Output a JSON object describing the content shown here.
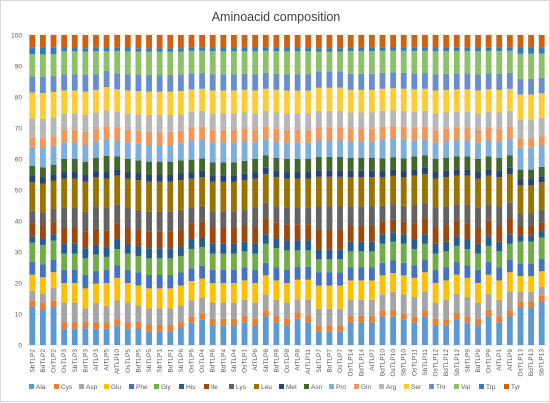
{
  "chart_data": {
    "type": "bar",
    "stacked": "percent",
    "title": "Aminoacid composition",
    "xlabel": "",
    "ylabel": "",
    "ylim": [
      0,
      100
    ],
    "yticks": [
      0,
      10,
      20,
      30,
      40,
      50,
      60,
      70,
      80,
      90,
      100
    ],
    "grid": "horizontal",
    "legend_position": "bottom",
    "categories": [
      "SbTLP2",
      "BdTLP2",
      "OsTLP2",
      "OsTLP3",
      "SbTLP3",
      "BdTLP3",
      "AtTLP3",
      "AtTLP5",
      "AtTLP10",
      "OsTLP5",
      "BdTLP5",
      "SbTLP5",
      "SbTLP1",
      "BdTLP1",
      "SbTLP6",
      "OsTLP6",
      "OsTLP4",
      "BdTLP6",
      "BdTLP4",
      "SbTLP4",
      "OsTLP1",
      "AtTLP6",
      "SbTLP8",
      "BdTLP8",
      "OsTLP8",
      "AtTLP8",
      "AtTLP11",
      "SbTLP7",
      "BdTLP7",
      "OsTLP7",
      "OsTLP14",
      "BdTLP14",
      "AtTLP7",
      "BdTLP10",
      "OsTLP10",
      "SbTLP10",
      "OsTLP11",
      "SbTLP11",
      "OsTLP12",
      "BdTLP12",
      "SbTLP12",
      "SbTLP9",
      "BdTLP9",
      "OsTLP9",
      "AtTLP1",
      "AtTLP9",
      "OsTLP13",
      "BdTLP13",
      "SbTLP13"
    ],
    "series": [
      {
        "name": "Ala",
        "color": "#5b9bd5",
        "values": [
          12,
          11,
          12,
          5,
          5,
          5,
          5,
          5,
          6,
          5,
          5,
          4,
          4,
          4,
          5,
          7,
          8,
          6,
          6,
          6,
          7,
          6,
          9,
          7,
          6,
          8,
          7,
          4,
          4,
          4,
          7,
          7,
          7,
          9,
          9,
          8,
          7,
          9,
          6,
          6,
          8,
          7,
          6,
          9,
          7,
          9,
          12,
          12,
          14
        ]
      },
      {
        "name": "Cys",
        "color": "#ed7d31",
        "values": [
          2,
          2,
          2,
          2,
          2,
          2,
          2,
          2,
          2,
          2,
          2,
          2,
          2,
          2,
          2,
          2,
          2,
          2,
          2,
          2,
          2,
          2,
          2,
          2,
          2,
          2,
          2,
          2,
          2,
          2,
          2,
          2,
          2,
          2,
          2,
          2,
          2,
          2,
          2,
          2,
          2,
          2,
          2,
          2,
          2,
          2,
          2,
          2,
          2
        ]
      },
      {
        "name": "Asp",
        "color": "#a5a5a5",
        "values": [
          3,
          3,
          4,
          6,
          6,
          4,
          6,
          5,
          6,
          6,
          5,
          5,
          5,
          5,
          5,
          5,
          5,
          5,
          5,
          5,
          5,
          5,
          5,
          5,
          5,
          4,
          5,
          5,
          5,
          5,
          5,
          5,
          5,
          5,
          6,
          6,
          6,
          6,
          5,
          6,
          6,
          6,
          5,
          5,
          5,
          6,
          3,
          3,
          3
        ]
      },
      {
        "name": "Glu",
        "color": "#ffc000",
        "values": [
          5,
          5,
          5,
          6,
          6,
          6,
          6,
          7,
          7,
          6,
          6,
          6,
          6,
          6,
          6,
          6,
          6,
          6,
          6,
          6,
          6,
          6,
          6,
          6,
          6,
          6,
          6,
          7,
          7,
          7,
          6,
          6,
          6,
          6,
          6,
          6,
          6,
          6,
          6,
          6,
          6,
          6,
          6,
          6,
          6,
          6,
          5,
          5,
          5
        ]
      },
      {
        "name": "Phe",
        "color": "#4472c4",
        "values": [
          4,
          4,
          4,
          4,
          4,
          4,
          4,
          4,
          4,
          4,
          4,
          4,
          4,
          4,
          4,
          4,
          4,
          4,
          4,
          4,
          4,
          4,
          4,
          4,
          4,
          4,
          4,
          4,
          4,
          4,
          4,
          4,
          4,
          4,
          4,
          4,
          4,
          4,
          4,
          4,
          4,
          4,
          4,
          4,
          4,
          4,
          4,
          4,
          4
        ]
      },
      {
        "name": "Gly",
        "color": "#70ad47",
        "values": [
          6,
          6,
          6,
          5,
          5,
          5,
          5,
          4,
          5,
          5,
          5,
          5,
          5,
          5,
          5,
          6,
          6,
          5,
          5,
          5,
          5,
          5,
          6,
          6,
          6,
          5,
          5,
          4,
          4,
          4,
          5,
          5,
          5,
          6,
          6,
          6,
          5,
          5,
          5,
          5,
          5,
          5,
          5,
          5,
          5,
          5,
          7,
          7,
          7
        ]
      },
      {
        "name": "His",
        "color": "#255e91",
        "values": [
          2,
          2,
          2,
          3,
          3,
          3,
          3,
          3,
          3,
          3,
          3,
          3,
          3,
          3,
          3,
          3,
          3,
          3,
          3,
          3,
          3,
          3,
          3,
          3,
          3,
          3,
          3,
          3,
          3,
          3,
          3,
          3,
          3,
          3,
          3,
          3,
          3,
          3,
          3,
          3,
          3,
          3,
          3,
          3,
          3,
          3,
          2,
          2,
          2
        ]
      },
      {
        "name": "Ile",
        "color": "#9e480e",
        "values": [
          4,
          4,
          4,
          5,
          5,
          5,
          5,
          5,
          5,
          5,
          5,
          5,
          5,
          5,
          5,
          5,
          5,
          5,
          5,
          5,
          5,
          5,
          5,
          5,
          5,
          5,
          5,
          6,
          6,
          6,
          5,
          5,
          5,
          4,
          4,
          4,
          5,
          5,
          5,
          5,
          5,
          5,
          5,
          5,
          5,
          5,
          3,
          3,
          3
        ]
      },
      {
        "name": "Lys",
        "color": "#636363",
        "values": [
          4,
          4,
          4,
          6,
          6,
          6,
          7,
          7,
          6,
          6,
          6,
          6,
          6,
          6,
          6,
          5,
          5,
          5,
          5,
          5,
          5,
          6,
          5,
          5,
          5,
          5,
          5,
          7,
          7,
          7,
          6,
          6,
          6,
          5,
          5,
          5,
          6,
          5,
          6,
          6,
          5,
          6,
          6,
          5,
          6,
          5,
          4,
          4,
          4
        ]
      },
      {
        "name": "Leu",
        "color": "#997300",
        "values": [
          9,
          9,
          9,
          9,
          9,
          9,
          9,
          9,
          9,
          9,
          9,
          9,
          9,
          9,
          9,
          9,
          9,
          9,
          9,
          9,
          9,
          9,
          9,
          9,
          9,
          9,
          9,
          9,
          9,
          9,
          9,
          9,
          9,
          9,
          9,
          9,
          9,
          9,
          9,
          9,
          9,
          9,
          9,
          9,
          9,
          9,
          9,
          9,
          9
        ]
      },
      {
        "name": "Met",
        "color": "#264478",
        "values": [
          2,
          2,
          2,
          2,
          2,
          2,
          2,
          2,
          2,
          2,
          2,
          2,
          2,
          2,
          2,
          2,
          2,
          2,
          2,
          2,
          2,
          2,
          2,
          2,
          2,
          2,
          2,
          2,
          2,
          2,
          2,
          2,
          2,
          2,
          2,
          2,
          2,
          2,
          2,
          2,
          2,
          2,
          2,
          2,
          2,
          2,
          2,
          2,
          2
        ]
      },
      {
        "name": "Asn",
        "color": "#43682b",
        "values": [
          3,
          3,
          3,
          4,
          4,
          4,
          4,
          5,
          4,
          4,
          4,
          4,
          4,
          4,
          4,
          4,
          4,
          4,
          4,
          4,
          4,
          4,
          4,
          4,
          4,
          4,
          4,
          4,
          4,
          4,
          4,
          4,
          4,
          4,
          4,
          4,
          4,
          4,
          4,
          4,
          4,
          4,
          4,
          4,
          4,
          4,
          3,
          3,
          3
        ]
      },
      {
        "name": "Pro",
        "color": "#7cafdd",
        "values": [
          6,
          6,
          6,
          5,
          5,
          5,
          5,
          5,
          5,
          5,
          5,
          5,
          5,
          5,
          5,
          6,
          6,
          6,
          6,
          6,
          6,
          5,
          5,
          5,
          5,
          5,
          5,
          5,
          5,
          5,
          5,
          5,
          5,
          6,
          6,
          6,
          5,
          5,
          5,
          5,
          5,
          5,
          5,
          5,
          5,
          5,
          7,
          7,
          7
        ]
      },
      {
        "name": "Gln",
        "color": "#f1975a",
        "values": [
          3,
          3,
          3,
          4,
          4,
          4,
          4,
          4,
          4,
          4,
          4,
          4,
          4,
          4,
          4,
          4,
          4,
          4,
          4,
          4,
          4,
          4,
          4,
          4,
          4,
          4,
          4,
          4,
          4,
          4,
          4,
          4,
          4,
          4,
          4,
          4,
          4,
          4,
          4,
          4,
          4,
          4,
          4,
          4,
          4,
          4,
          3,
          3,
          3
        ]
      },
      {
        "name": "Arg",
        "color": "#b7b7b7",
        "values": [
          6,
          6,
          6,
          5,
          5,
          5,
          5,
          5,
          5,
          5,
          5,
          5,
          5,
          5,
          5,
          5,
          5,
          5,
          5,
          5,
          5,
          5,
          5,
          5,
          5,
          5,
          5,
          5,
          5,
          5,
          5,
          5,
          5,
          5,
          5,
          5,
          5,
          5,
          5,
          5,
          5,
          5,
          5,
          5,
          5,
          5,
          6,
          6,
          6
        ]
      },
      {
        "name": "Ser",
        "color": "#ffcd33",
        "values": [
          8,
          8,
          8,
          7,
          7,
          7,
          7,
          7,
          7,
          7,
          7,
          7,
          7,
          7,
          7,
          7,
          7,
          7,
          7,
          7,
          7,
          7,
          7,
          7,
          7,
          7,
          7,
          7,
          7,
          7,
          7,
          7,
          7,
          7,
          7,
          7,
          7,
          7,
          7,
          7,
          7,
          7,
          7,
          7,
          7,
          7,
          8,
          8,
          8
        ]
      },
      {
        "name": "Thr",
        "color": "#698ed0",
        "values": [
          5,
          5,
          5,
          5,
          5,
          5,
          5,
          5,
          5,
          5,
          5,
          5,
          5,
          5,
          5,
          5,
          5,
          5,
          5,
          5,
          5,
          5,
          5,
          5,
          5,
          5,
          5,
          5,
          5,
          5,
          5,
          5,
          5,
          5,
          5,
          5,
          5,
          5,
          5,
          5,
          5,
          5,
          5,
          5,
          5,
          5,
          5,
          5,
          5
        ]
      },
      {
        "name": "Val",
        "color": "#8cc168",
        "values": [
          7,
          7,
          7,
          7,
          7,
          7,
          7,
          6,
          7,
          7,
          7,
          7,
          7,
          7,
          7,
          7,
          7,
          7,
          7,
          7,
          7,
          7,
          7,
          7,
          7,
          7,
          7,
          6,
          6,
          6,
          7,
          7,
          7,
          7,
          7,
          7,
          7,
          7,
          7,
          7,
          7,
          7,
          7,
          7,
          7,
          7,
          8,
          8,
          8
        ]
      },
      {
        "name": "Trp",
        "color": "#327dc2",
        "values": [
          2,
          2,
          2,
          1,
          1,
          1,
          1,
          1,
          1,
          1,
          1,
          1,
          1,
          1,
          1,
          1,
          1,
          1,
          1,
          1,
          1,
          1,
          1,
          1,
          1,
          1,
          1,
          1,
          1,
          1,
          1,
          1,
          1,
          1,
          1,
          1,
          1,
          1,
          1,
          1,
          1,
          1,
          1,
          1,
          1,
          1,
          2,
          2,
          2
        ]
      },
      {
        "name": "Tyr",
        "color": "#d26012",
        "values": [
          4,
          4,
          4,
          4,
          4,
          4,
          4,
          4,
          4,
          4,
          4,
          4,
          4,
          4,
          4,
          4,
          4,
          4,
          4,
          4,
          4,
          4,
          4,
          4,
          4,
          4,
          4,
          4,
          4,
          4,
          4,
          4,
          4,
          4,
          4,
          4,
          4,
          4,
          4,
          4,
          4,
          4,
          4,
          4,
          4,
          4,
          4,
          4,
          4
        ]
      }
    ]
  }
}
